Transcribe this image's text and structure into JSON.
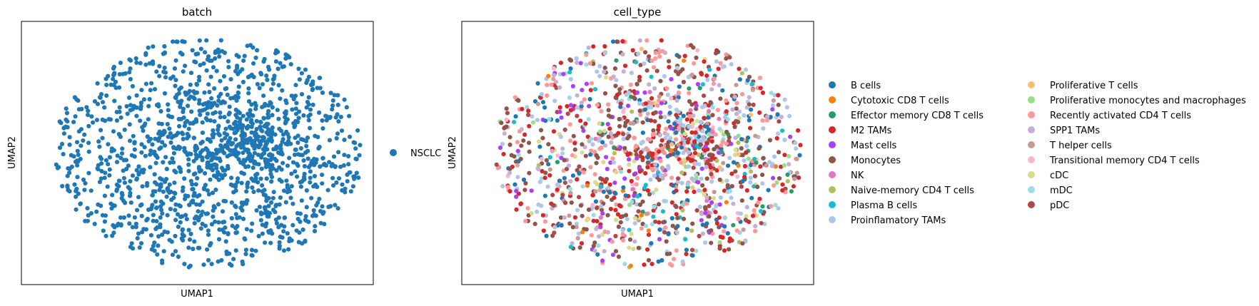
{
  "chart_data": [
    {
      "type": "scatter",
      "title": "batch",
      "xlabel": "UMAP1",
      "ylabel": "UMAP2",
      "grid": false,
      "xticks": false,
      "yticks": false,
      "legend_placement": "right",
      "legend": [
        {
          "label": "NSCLC",
          "color": "#1f77b4"
        }
      ],
      "point_count_approx": 1500,
      "cloud": "single dense roughly elliptical cloud of points, all colored NSCLC"
    },
    {
      "type": "scatter",
      "title": "cell_type",
      "xlabel": "UMAP1",
      "ylabel": "UMAP2",
      "grid": false,
      "xticks": false,
      "yticks": false,
      "legend_placement": "right, two columns",
      "legend": [
        {
          "label": "B cells",
          "color": "#1f77b4"
        },
        {
          "label": "Cytotoxic CD8 T cells",
          "color": "#ff7f0e"
        },
        {
          "label": "Effector memory CD8 T cells",
          "color": "#279e68"
        },
        {
          "label": "M2 TAMs",
          "color": "#d62728"
        },
        {
          "label": "Mast cells",
          "color": "#aa40fc"
        },
        {
          "label": "Monocytes",
          "color": "#8c564b"
        },
        {
          "label": "NK",
          "color": "#e377c2"
        },
        {
          "label": "Naive-memory CD4 T cells",
          "color": "#b5bd61"
        },
        {
          "label": "Plasma B cells",
          "color": "#17becf"
        },
        {
          "label": "Proinflamatory TAMs",
          "color": "#aec7e8"
        },
        {
          "label": "Proliferative T cells",
          "color": "#ffbb78"
        },
        {
          "label": "Proliferative monocytes and macrophages",
          "color": "#98df8a"
        },
        {
          "label": "Recently activated CD4 T cells",
          "color": "#ff9896"
        },
        {
          "label": "SPP1 TAMs",
          "color": "#c5b0d5"
        },
        {
          "label": "T helper cells",
          "color": "#c49c94"
        },
        {
          "label": "Transitional memory CD4 T cells",
          "color": "#f7b6d2"
        },
        {
          "label": "cDC",
          "color": "#dbdb8d"
        },
        {
          "label": "mDC",
          "color": "#9edae5"
        },
        {
          "label": "pDC",
          "color": "#ad494a"
        }
      ],
      "category_weights": [
        9,
        1,
        2,
        14,
        5,
        17,
        1,
        1,
        2,
        12,
        1,
        1,
        12,
        6,
        3,
        2,
        3,
        3,
        5
      ],
      "point_count_approx": 1300,
      "cloud": "same embedding as batch panel, points colored by cell_type"
    }
  ]
}
